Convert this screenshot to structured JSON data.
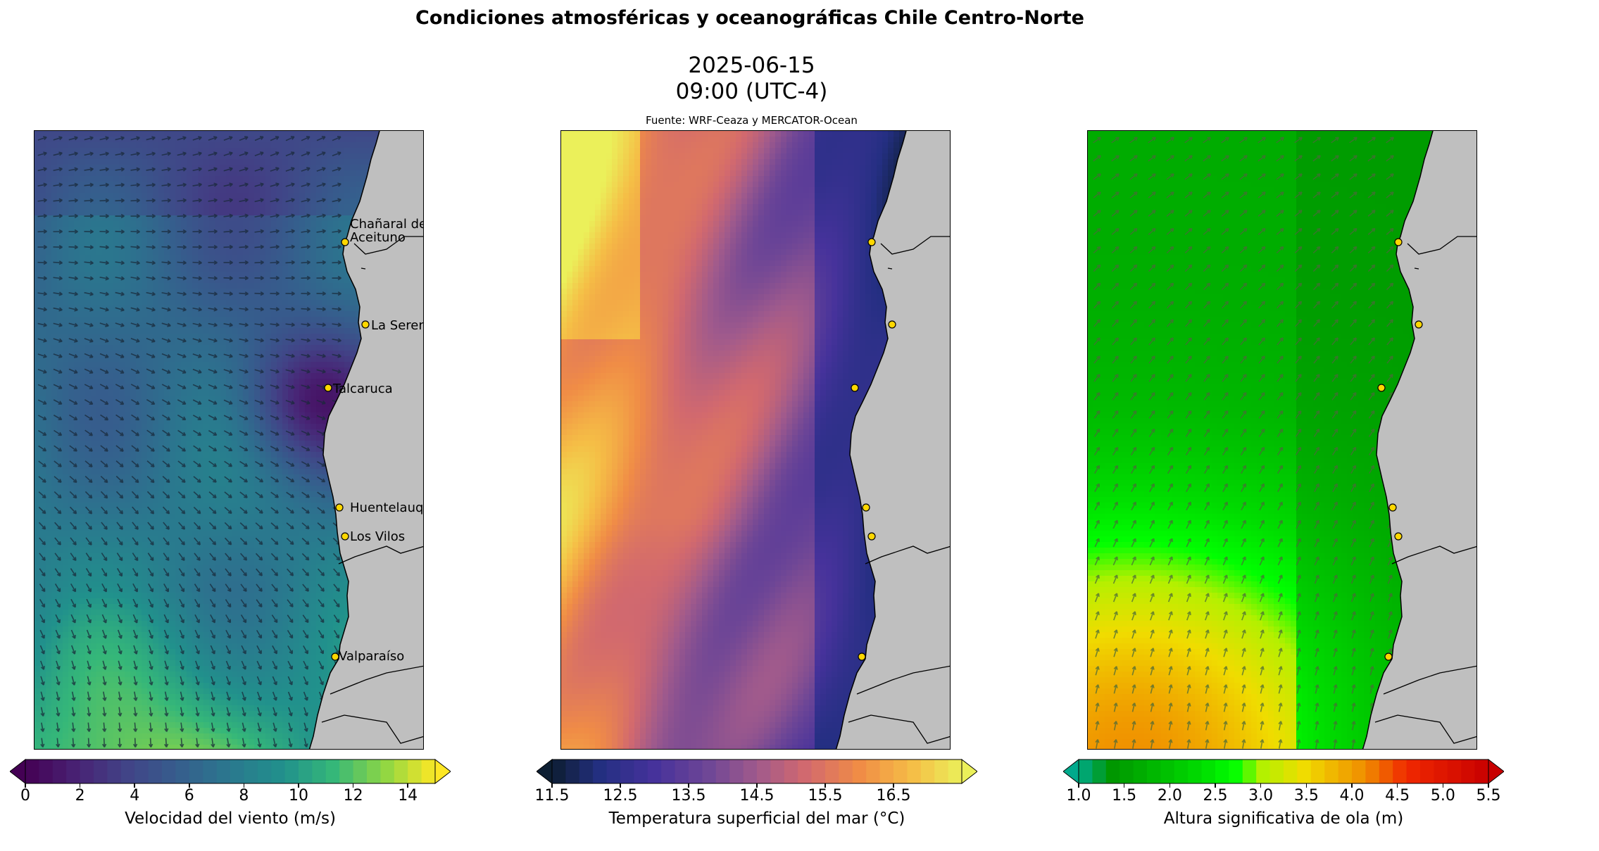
{
  "title": "Condiciones atmosféricas y oceanográficas Chile Centro-Norte",
  "date": "2025-06-15",
  "time": "09:00 (UTC-4)",
  "source": "Fuente: WRF-Ceaza y MERCATOR-Ocean",
  "colors": {
    "land": "#bfbfbf",
    "coast": "#000000",
    "city_marker": "#ffd700"
  },
  "chart_data": [
    {
      "type": "heatmap",
      "title": "",
      "variable": "Velocidad del viento (m/s)",
      "colormap": "viridis",
      "colorbar": {
        "label": "Velocidad del viento (m/s)",
        "ticks": [
          "0",
          "2",
          "4",
          "6",
          "8",
          "10",
          "12",
          "14"
        ],
        "range": [
          0,
          15
        ],
        "extend": "both"
      },
      "overlay": "wind vectors",
      "cities": [
        {
          "name": "Chañaral de\nAceituno",
          "label_lines": [
            "Chañaral de",
            "Aceituno"
          ]
        },
        {
          "name": "La Serena",
          "label_lines": [
            "La Serena"
          ]
        },
        {
          "name": "Talcaruca",
          "label_lines": [
            "Talcaruca"
          ]
        },
        {
          "name": "Huentelauquen",
          "label_lines": [
            "Huentelauquen"
          ]
        },
        {
          "name": "Los Vilos",
          "label_lines": [
            "Los Vilos"
          ]
        },
        {
          "name": "Valparaíso",
          "label_lines": [
            "Valparaíso"
          ]
        }
      ]
    },
    {
      "type": "heatmap",
      "title": "",
      "variable": "Temperatura superficial del mar (°C)",
      "colormap": "plasma",
      "colorbar": {
        "label": "Temperatura superficial del mar (°C)",
        "ticks": [
          "11.5",
          "12.5",
          "13.5",
          "14.5",
          "15.5",
          "16.5"
        ],
        "range": [
          11.5,
          17.5
        ],
        "extend": "both"
      }
    },
    {
      "type": "heatmap",
      "title": "",
      "variable": "Altura significativa de ola (m)",
      "colormap": "teal-green-yellow-red",
      "colorbar": {
        "label": "Altura significativa de ola (m)",
        "ticks": [
          "1.0",
          "1.5",
          "2.0",
          "2.5",
          "3.0",
          "3.5",
          "4.0",
          "4.5",
          "5.0",
          "5.5"
        ],
        "range": [
          1.0,
          5.5
        ],
        "extend": "both"
      },
      "overlay": "wave direction vectors"
    }
  ]
}
